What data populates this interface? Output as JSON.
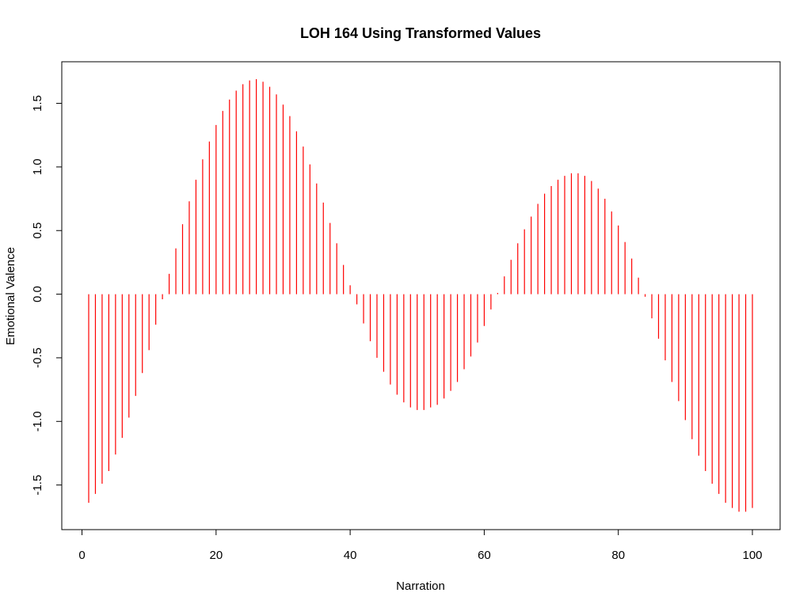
{
  "chart_data": {
    "type": "bar",
    "title": "LOH 164 Using Transformed Values",
    "xlabel": "Narration",
    "ylabel": "Emotional Valence",
    "xlim": [
      1,
      100
    ],
    "ylim": [
      -1.72,
      1.69
    ],
    "xticks": [
      0,
      20,
      40,
      60,
      80,
      100
    ],
    "xtick_labels": [
      "0",
      "20",
      "40",
      "60",
      "80",
      "100"
    ],
    "yticks": [
      -1.5,
      -1.0,
      -0.5,
      0.0,
      0.5,
      1.0,
      1.5
    ],
    "ytick_labels": [
      "-1.5",
      "-1.0",
      "-0.5",
      "0.0",
      "0.5",
      "1.0",
      "1.5"
    ],
    "grid": false,
    "series": [
      {
        "color": "#ff0000",
        "x": [
          1,
          2,
          3,
          4,
          5,
          6,
          7,
          8,
          9,
          10,
          11,
          12,
          13,
          14,
          15,
          16,
          17,
          18,
          19,
          20,
          21,
          22,
          23,
          24,
          25,
          26,
          27,
          28,
          29,
          30,
          31,
          32,
          33,
          34,
          35,
          36,
          37,
          38,
          39,
          40,
          41,
          42,
          43,
          44,
          45,
          46,
          47,
          48,
          49,
          50,
          51,
          52,
          53,
          54,
          55,
          56,
          57,
          58,
          59,
          60,
          61,
          62,
          63,
          64,
          65,
          66,
          67,
          68,
          69,
          70,
          71,
          72,
          73,
          74,
          75,
          76,
          77,
          78,
          79,
          80,
          81,
          82,
          83,
          84,
          85,
          86,
          87,
          88,
          89,
          90,
          91,
          92,
          93,
          94,
          95,
          96,
          97,
          98,
          99,
          100
        ],
        "values": [
          -1.64,
          -1.57,
          -1.49,
          -1.39,
          -1.26,
          -1.13,
          -0.97,
          -0.8,
          -0.62,
          -0.44,
          -0.24,
          -0.04,
          0.16,
          0.36,
          0.55,
          0.73,
          0.9,
          1.06,
          1.2,
          1.33,
          1.44,
          1.53,
          1.6,
          1.65,
          1.68,
          1.69,
          1.67,
          1.63,
          1.57,
          1.49,
          1.4,
          1.28,
          1.16,
          1.02,
          0.87,
          0.72,
          0.56,
          0.4,
          0.23,
          0.07,
          -0.08,
          -0.23,
          -0.37,
          -0.5,
          -0.61,
          -0.71,
          -0.79,
          -0.85,
          -0.89,
          -0.91,
          -0.91,
          -0.89,
          -0.87,
          -0.82,
          -0.76,
          -0.69,
          -0.59,
          -0.49,
          -0.38,
          -0.25,
          -0.12,
          0.01,
          0.14,
          0.27,
          0.4,
          0.51,
          0.61,
          0.71,
          0.79,
          0.85,
          0.9,
          0.93,
          0.95,
          0.95,
          0.93,
          0.89,
          0.83,
          0.75,
          0.65,
          0.54,
          0.41,
          0.28,
          0.13,
          -0.02,
          -0.19,
          -0.35,
          -0.52,
          -0.69,
          -0.84,
          -0.99,
          -1.14,
          -1.27,
          -1.39,
          -1.49,
          -1.57,
          -1.64,
          -1.68,
          -1.71,
          -1.71,
          -1.68
        ]
      }
    ]
  }
}
